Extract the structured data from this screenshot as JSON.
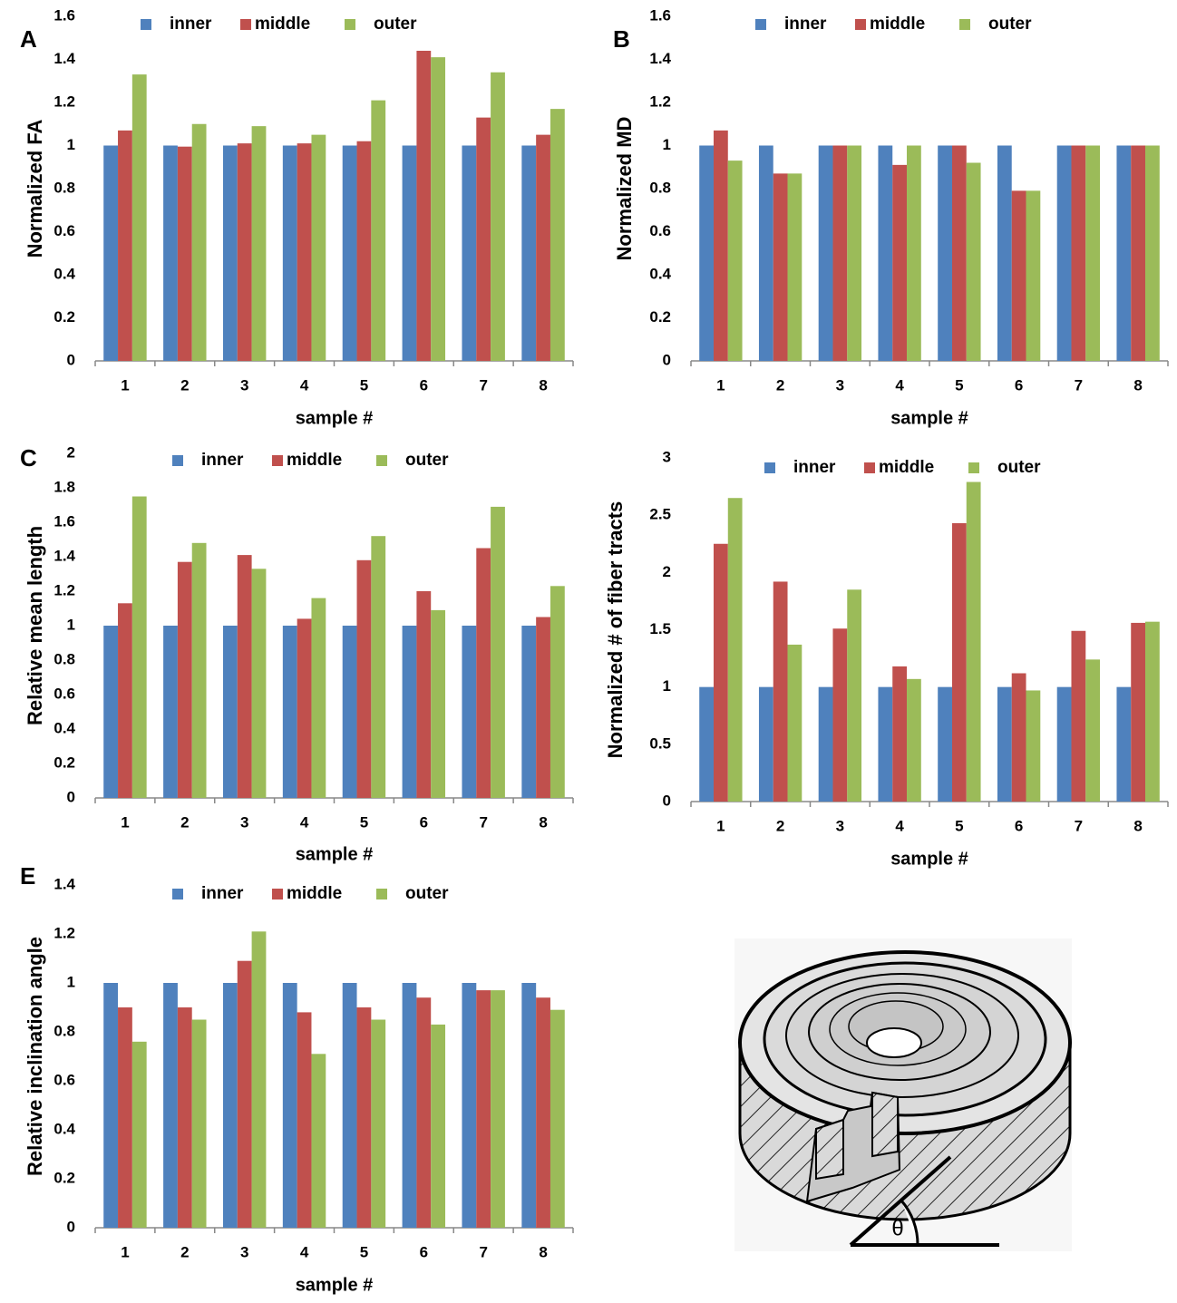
{
  "chart_data": [
    {
      "type": "bar",
      "panel_label": "A",
      "ylabel": "Normalized FA",
      "xlabel": "sample #",
      "categories": [
        "1",
        "2",
        "3",
        "4",
        "5",
        "6",
        "7",
        "8"
      ],
      "series": [
        {
          "name": "inner",
          "color": "#4f81bd",
          "values": [
            1,
            1,
            1,
            1,
            1,
            1,
            1,
            1
          ]
        },
        {
          "name": "middle",
          "color": "#c0504d",
          "values": [
            1.07,
            0.995,
            1.01,
            1.01,
            1.02,
            1.44,
            1.13,
            1.05
          ]
        },
        {
          "name": "outer",
          "color": "#9bbb59",
          "values": [
            1.33,
            1.1,
            1.09,
            1.05,
            1.21,
            1.41,
            1.34,
            1.17
          ]
        }
      ],
      "ylim": [
        0,
        1.6
      ],
      "yticks": [
        0,
        0.2,
        0.4,
        0.6,
        0.8,
        1,
        1.2,
        1.4,
        1.6
      ],
      "legend": "top"
    },
    {
      "type": "bar",
      "panel_label": "B",
      "ylabel": "Normalized MD",
      "xlabel": "sample #",
      "categories": [
        "1",
        "2",
        "3",
        "4",
        "5",
        "6",
        "7",
        "8"
      ],
      "series": [
        {
          "name": "inner",
          "color": "#4f81bd",
          "values": [
            1,
            1,
            1,
            1,
            1,
            1,
            1,
            1
          ]
        },
        {
          "name": "middle",
          "color": "#c0504d",
          "values": [
            1.07,
            0.87,
            1,
            0.91,
            1,
            0.79,
            1,
            1
          ]
        },
        {
          "name": "outer",
          "color": "#9bbb59",
          "values": [
            0.93,
            0.87,
            1,
            1,
            0.92,
            0.79,
            1,
            1
          ]
        }
      ],
      "ylim": [
        0,
        1.6
      ],
      "yticks": [
        0,
        0.2,
        0.4,
        0.6,
        0.8,
        1,
        1.2,
        1.4,
        1.6
      ],
      "legend": "top"
    },
    {
      "type": "bar",
      "panel_label": "C",
      "ylabel": "Relative mean length",
      "xlabel": "sample #",
      "categories": [
        "1",
        "2",
        "3",
        "4",
        "5",
        "6",
        "7",
        "8"
      ],
      "series": [
        {
          "name": "inner",
          "color": "#4f81bd",
          "values": [
            1,
            1,
            1,
            1,
            1,
            1,
            1,
            1
          ]
        },
        {
          "name": "middle",
          "color": "#c0504d",
          "values": [
            1.13,
            1.37,
            1.41,
            1.04,
            1.38,
            1.2,
            1.45,
            1.05
          ]
        },
        {
          "name": "outer",
          "color": "#9bbb59",
          "values": [
            1.75,
            1.48,
            1.33,
            1.16,
            1.52,
            1.09,
            1.69,
            1.23
          ]
        }
      ],
      "ylim": [
        0,
        2
      ],
      "yticks": [
        0,
        0.2,
        0.4,
        0.6,
        0.8,
        1,
        1.2,
        1.4,
        1.6,
        1.8,
        2
      ],
      "legend": "top"
    },
    {
      "type": "bar",
      "ylabel": "Normalized # of fiber tracts",
      "xlabel": "sample #",
      "categories": [
        "1",
        "2",
        "3",
        "4",
        "5",
        "6",
        "7",
        "8"
      ],
      "series": [
        {
          "name": "inner",
          "color": "#4f81bd",
          "values": [
            1,
            1,
            1,
            1,
            1,
            1,
            1,
            1
          ]
        },
        {
          "name": "middle",
          "color": "#c0504d",
          "values": [
            2.25,
            1.92,
            1.51,
            1.18,
            2.43,
            1.12,
            1.49,
            1.56
          ]
        },
        {
          "name": "outer",
          "color": "#9bbb59",
          "values": [
            2.65,
            1.37,
            1.85,
            1.07,
            2.79,
            0.97,
            1.24,
            1.57
          ]
        }
      ],
      "ylim": [
        0,
        3
      ],
      "yticks": [
        0,
        0.5,
        1,
        1.5,
        2,
        2.5,
        3
      ],
      "legend": "top"
    },
    {
      "type": "bar",
      "panel_label": "E",
      "ylabel": "Relative inclination angle",
      "xlabel": "sample #",
      "categories": [
        "1",
        "2",
        "3",
        "4",
        "5",
        "6",
        "7",
        "8"
      ],
      "series": [
        {
          "name": "inner",
          "color": "#4f81bd",
          "values": [
            1,
            1,
            1,
            1,
            1,
            1,
            1,
            1
          ]
        },
        {
          "name": "middle",
          "color": "#c0504d",
          "values": [
            0.9,
            0.9,
            1.09,
            0.88,
            0.9,
            0.94,
            0.97,
            0.94
          ]
        },
        {
          "name": "outer",
          "color": "#9bbb59",
          "values": [
            0.76,
            0.85,
            1.21,
            0.71,
            0.85,
            0.83,
            0.97,
            0.89
          ]
        }
      ],
      "ylim": [
        0,
        1.4
      ],
      "yticks": [
        0,
        0.2,
        0.4,
        0.6,
        0.8,
        1,
        1.2,
        1.4
      ],
      "legend": "top"
    }
  ],
  "illustration": {
    "angle_label": "θ"
  }
}
